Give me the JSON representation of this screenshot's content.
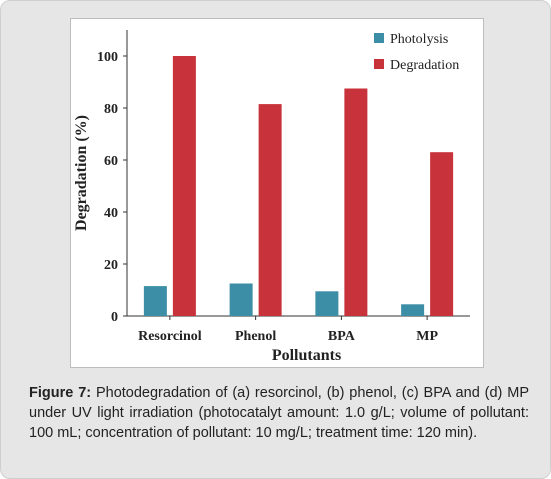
{
  "figure": {
    "caption_label": "Figure 7:",
    "caption_text": " Photodegradation of (a) resorcinol, (b) phenol, (c) BPA and (d) MP under UV light irradiation (photocatalyt amount: 1.0 g/L; volume of pollutant: 100 mL; concentration of pollutant: 10 mg/L; treatment time: 120 min)."
  },
  "chart_data": {
    "type": "bar",
    "categories": [
      "Resorcinol",
      "Phenol",
      "BPA",
      "MP"
    ],
    "series": [
      {
        "name": "Photolysis",
        "values": [
          11.5,
          12.5,
          9.5,
          4.5
        ],
        "color": "#3b8ea5"
      },
      {
        "name": "Degradation",
        "values": [
          100,
          81.5,
          87.5,
          63
        ],
        "color": "#c8323a"
      }
    ],
    "xlabel": "Pollutants",
    "ylabel": "Degradation (%)",
    "ylim": [
      0,
      110
    ],
    "yticks": [
      0,
      20,
      40,
      60,
      80,
      100
    ],
    "grid": false,
    "legend": "top-right"
  }
}
